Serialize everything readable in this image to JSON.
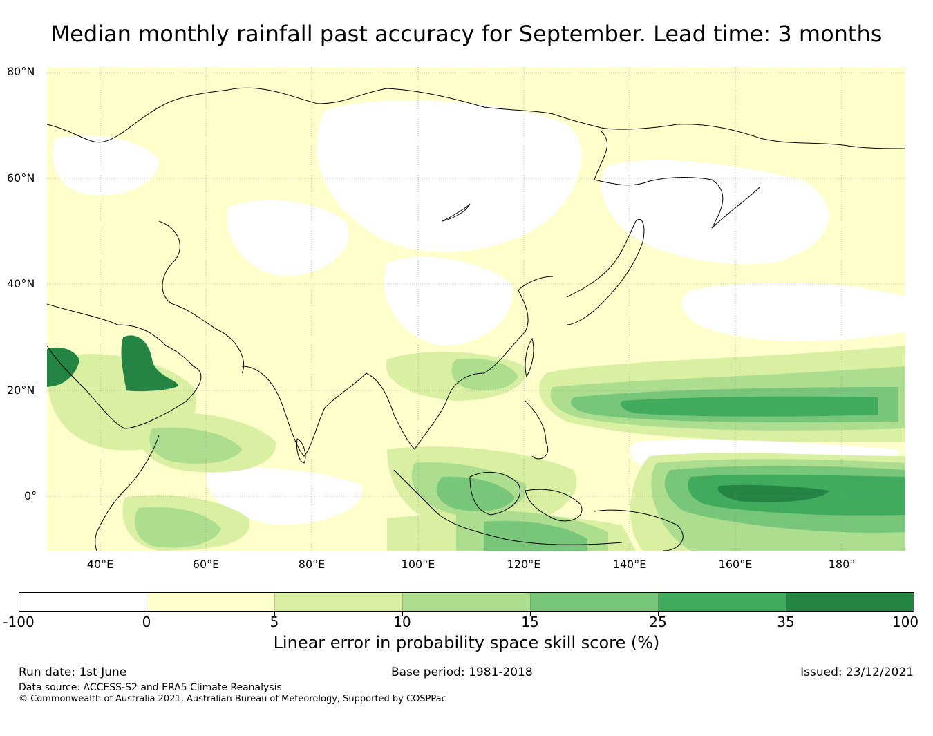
{
  "title": "Median monthly rainfall past accuracy for September. Lead time: 3 months",
  "map": {
    "lat_labels": [
      "80°N",
      "60°N",
      "40°N",
      "20°N",
      "0°"
    ],
    "lon_labels": [
      "40°E",
      "60°E",
      "80°E",
      "100°E",
      "120°E",
      "140°E",
      "160°E",
      "180°"
    ],
    "grid": true
  },
  "colorbar": {
    "colors": [
      "#ffffff",
      "#ffffcc",
      "#d9f0a3",
      "#addd8e",
      "#78c679",
      "#41ab5d",
      "#238443"
    ],
    "tick_labels": [
      "-100",
      "0",
      "5",
      "10",
      "15",
      "25",
      "35",
      "100"
    ],
    "label": "Linear error in probability space skill score (%)"
  },
  "footer": {
    "run_date": "Run date: 1st June",
    "base_period": "Base period: 1981-2018",
    "issued": "Issued: 23/12/2021",
    "data_source": "Data source: ACCESS-S2 and ERA5 Climate Reanalysis",
    "copyright": "© Commonwealth of Australia 2021, Australian Bureau of Meteorology, Supported by COSPPac"
  }
}
